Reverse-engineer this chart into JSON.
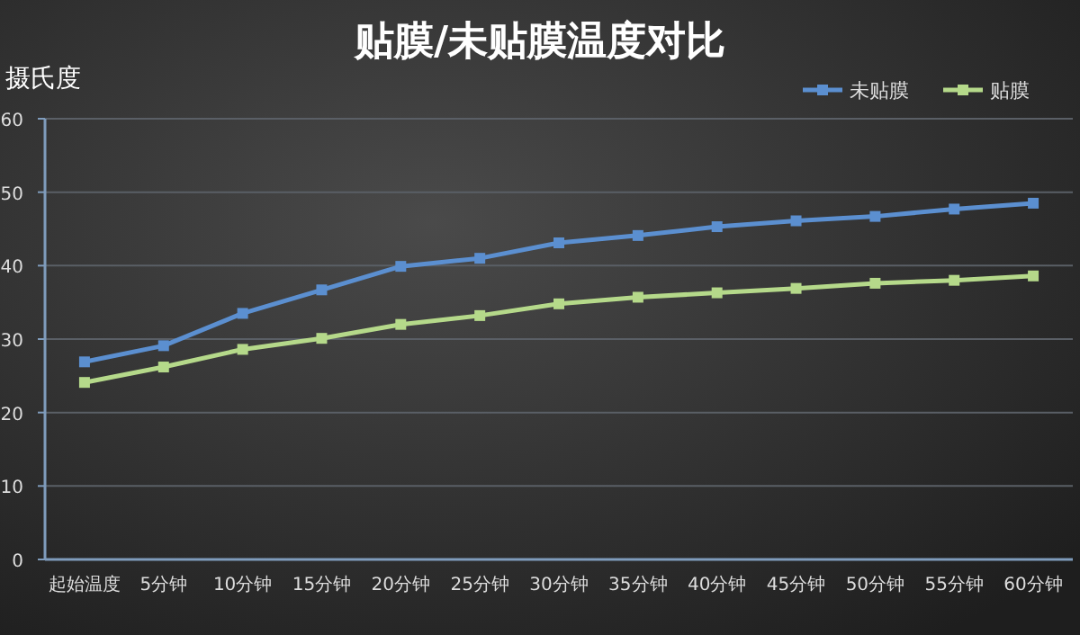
{
  "chart_data": {
    "type": "line",
    "title": "贴膜/未贴膜温度对比",
    "ylabel": "摄氏度",
    "categories": [
      "起始温度",
      "5分钟",
      "10分钟",
      "15分钟",
      "20分钟",
      "25分钟",
      "30分钟",
      "35分钟",
      "40分钟",
      "45分钟",
      "50分钟",
      "55分钟",
      "60分钟"
    ],
    "series": [
      {
        "name": "未贴膜",
        "color": "#5b8fd0",
        "values": [
          26.9,
          29.1,
          33.5,
          36.7,
          39.9,
          41.0,
          43.1,
          44.1,
          45.3,
          46.1,
          46.7,
          47.7,
          48.5
        ]
      },
      {
        "name": "贴膜",
        "color": "#b5d98a",
        "values": [
          24.1,
          26.2,
          28.6,
          30.1,
          32.0,
          33.2,
          34.8,
          35.7,
          36.3,
          36.9,
          37.6,
          38.0,
          38.6
        ]
      }
    ],
    "ylim": [
      0,
      60
    ],
    "yticks": [
      0,
      10,
      20,
      30,
      40,
      50,
      60
    ],
    "grid": "y",
    "legend": "top right",
    "marker": "square",
    "line_style": "solid"
  }
}
